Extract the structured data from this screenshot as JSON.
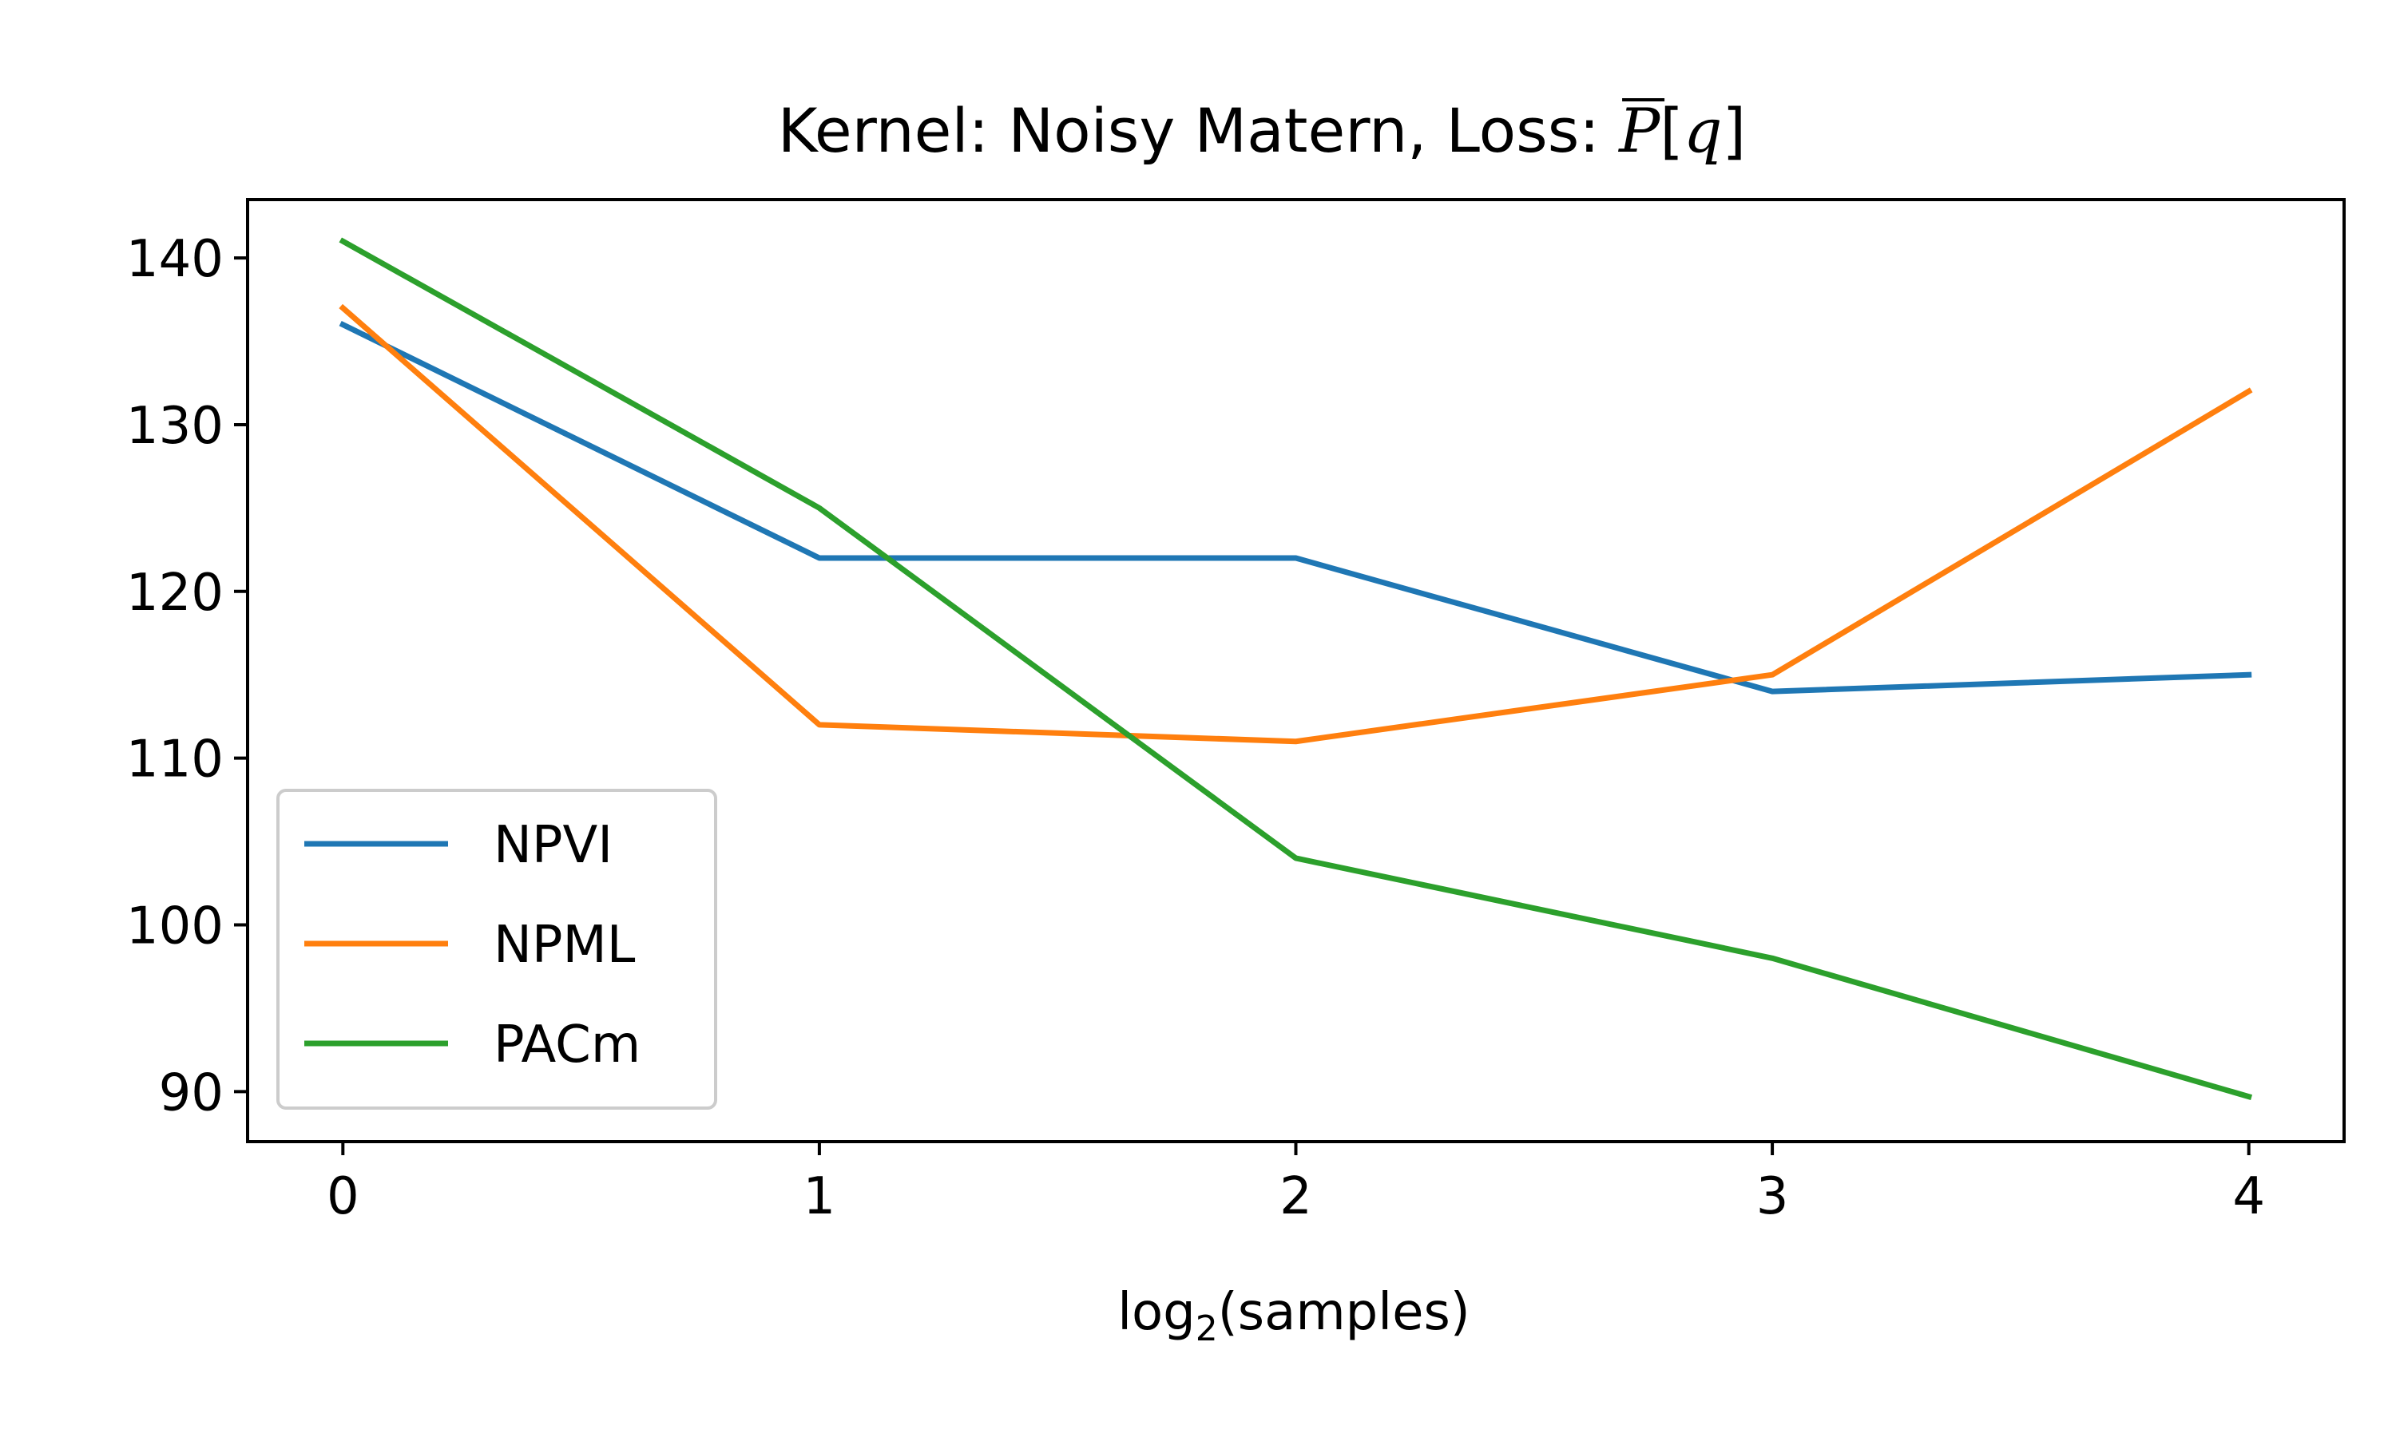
{
  "chart_data": {
    "type": "line",
    "title": {
      "prefix": "Kernel: Noisy Matern, Loss: ",
      "math_symbol": "P",
      "math_arg": "q"
    },
    "xlabel": {
      "base": "log",
      "subscript": "2",
      "rest": "(samples)"
    },
    "ylabel": "",
    "x": [
      0,
      1,
      2,
      3,
      4
    ],
    "xlim": [
      -0.2,
      4.2
    ],
    "ylim": [
      87.0,
      143.5
    ],
    "xticks": [
      0,
      1,
      2,
      3,
      4
    ],
    "xtick_labels": [
      "0",
      "1",
      "2",
      "3",
      "4"
    ],
    "yticks": [
      90,
      100,
      110,
      120,
      130,
      140
    ],
    "ytick_labels": [
      "90",
      "100",
      "110",
      "120",
      "130",
      "140"
    ],
    "grid": false,
    "legend_position": "lower-left",
    "series": [
      {
        "name": "NPVI",
        "color": "#1f77b4",
        "values": [
          136,
          122,
          122,
          114,
          115
        ]
      },
      {
        "name": "NPML",
        "color": "#ff7f0e",
        "values": [
          137,
          112,
          111,
          115,
          132
        ]
      },
      {
        "name": "PACm",
        "color": "#2ca02c",
        "values": [
          141,
          125,
          104,
          98,
          89.7
        ]
      }
    ]
  }
}
